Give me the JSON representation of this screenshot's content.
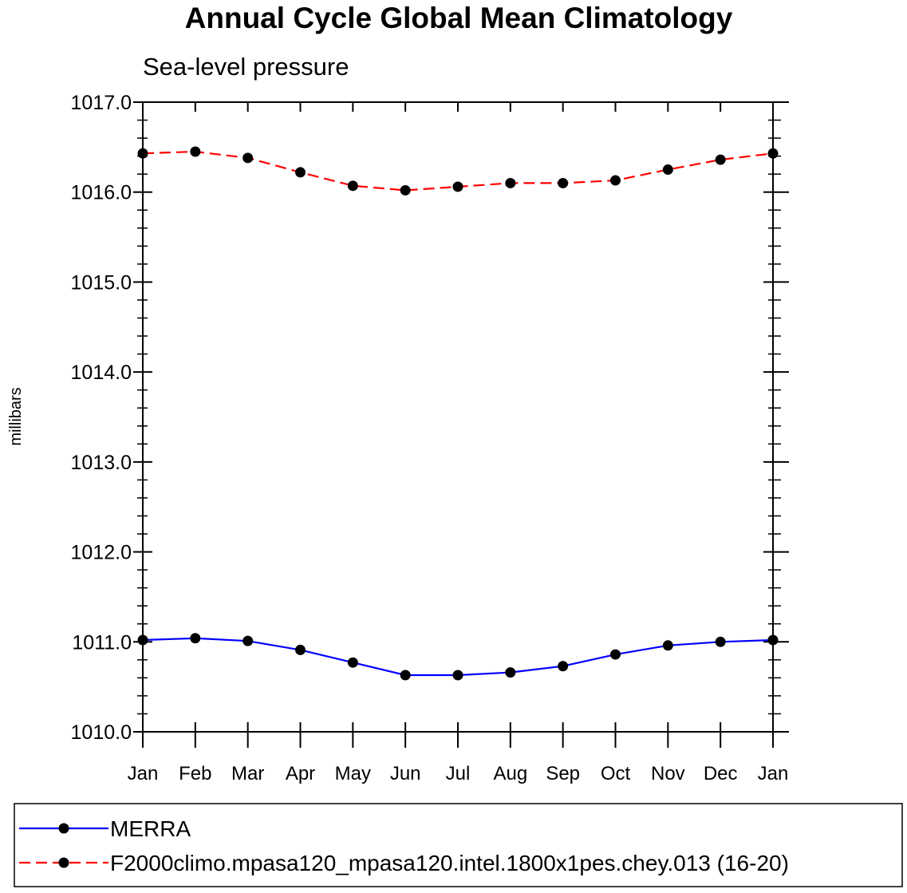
{
  "chart_data": {
    "type": "line",
    "title": "Annual Cycle Global Mean Climatology",
    "subtitle": "Sea-level pressure",
    "xlabel": "",
    "ylabel": "millibars",
    "categories": [
      "Jan",
      "Feb",
      "Mar",
      "Apr",
      "May",
      "Jun",
      "Jul",
      "Aug",
      "Sep",
      "Oct",
      "Nov",
      "Dec",
      "Jan"
    ],
    "ylim": [
      1010.0,
      1017.0
    ],
    "yticks": [
      "1010.0",
      "1011.0",
      "1012.0",
      "1013.0",
      "1014.0",
      "1015.0",
      "1016.0",
      "1017.0"
    ],
    "grid": false,
    "legend_position": "bottom",
    "series": [
      {
        "name": "MERRA",
        "color": "#0000ff",
        "line_style": "solid",
        "marker": "filled-circle",
        "values": [
          1011.02,
          1011.04,
          1011.01,
          1010.91,
          1010.77,
          1010.63,
          1010.63,
          1010.66,
          1010.73,
          1010.86,
          1010.96,
          1011.0,
          1011.02
        ]
      },
      {
        "name": "F2000climo.mpasa120_mpasa120.intel.1800x1pes.chey.013 (16-20)",
        "color": "#ff0000",
        "line_style": "dashed",
        "marker": "filled-circle",
        "values": [
          1016.43,
          1016.45,
          1016.38,
          1016.22,
          1016.07,
          1016.02,
          1016.06,
          1016.1,
          1016.1,
          1016.13,
          1016.25,
          1016.36,
          1016.43
        ]
      }
    ]
  }
}
